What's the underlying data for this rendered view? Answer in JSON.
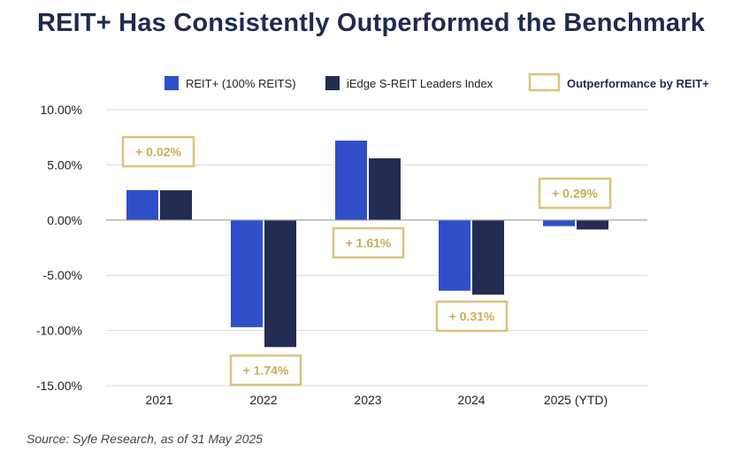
{
  "title": "REIT+ Has Consistently Outperformed the Benchmark",
  "source": "Source: Syfe Research, as of 31 May 2025",
  "colors": {
    "reit_plus": "#2f4fc9",
    "index": "#232d54",
    "outperformance": "#dcc377",
    "outperformance_text": "#c9ad55",
    "grid": "#d9d9d9",
    "axis_text": "#222222"
  },
  "legend": {
    "reit_plus": "REIT+ (100% REITS)",
    "index": "iEdge S-REIT Leaders Index",
    "outperformance": "Outperformance by REIT+"
  },
  "chart_data": {
    "type": "bar",
    "title": "REIT+ Has Consistently Outperformed the Benchmark",
    "categories": [
      "2021",
      "2022",
      "2023",
      "2024",
      "2025 (YTD)"
    ],
    "series": [
      {
        "name": "REIT+ (100% REITS)",
        "values": [
          2.72,
          -9.7,
          7.2,
          -6.4,
          -0.55
        ]
      },
      {
        "name": "iEdge S-REIT Leaders Index",
        "values": [
          2.7,
          -11.5,
          5.6,
          -6.75,
          -0.85
        ]
      }
    ],
    "annotations": [
      "+ 0.02%",
      "+ 1.74%",
      "+ 1.61%",
      "+ 0.31%",
      "+ 0.29%"
    ],
    "yticks": [
      "10.00%",
      "5.00%",
      "0.00%",
      "-5.00%",
      "-10.00%",
      "-15.00%"
    ],
    "ylim": [
      -15,
      10
    ],
    "xlabel": "",
    "ylabel": "",
    "legend_position": "top-right"
  }
}
